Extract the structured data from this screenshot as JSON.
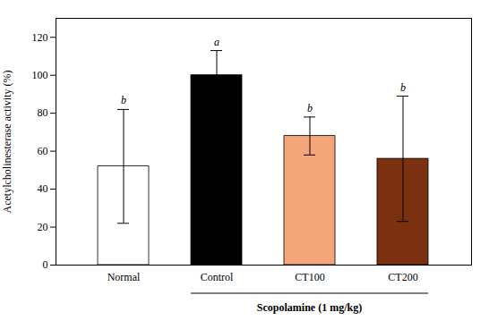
{
  "chart_data": {
    "type": "bar",
    "categories": [
      "Normal",
      "Control",
      "CT100",
      "CT200"
    ],
    "values": [
      52,
      100,
      68,
      56
    ],
    "errors": [
      30,
      13,
      10,
      33
    ],
    "colors": [
      "#FFFFFF",
      "#000000",
      "#F4A57A",
      "#7B3010"
    ],
    "significance_labels": [
      "b",
      "a",
      "b",
      "b"
    ],
    "ylabel": "Acetylcholinesterase activity (%)",
    "annotations": [
      {
        "text": "Scopolamine (1 mg/kg)",
        "from": "Control",
        "to": "CT200"
      }
    ],
    "ylim": [
      0,
      130
    ],
    "yticks": [
      0,
      20,
      40,
      60,
      80,
      100,
      120
    ],
    "grid": false
  }
}
